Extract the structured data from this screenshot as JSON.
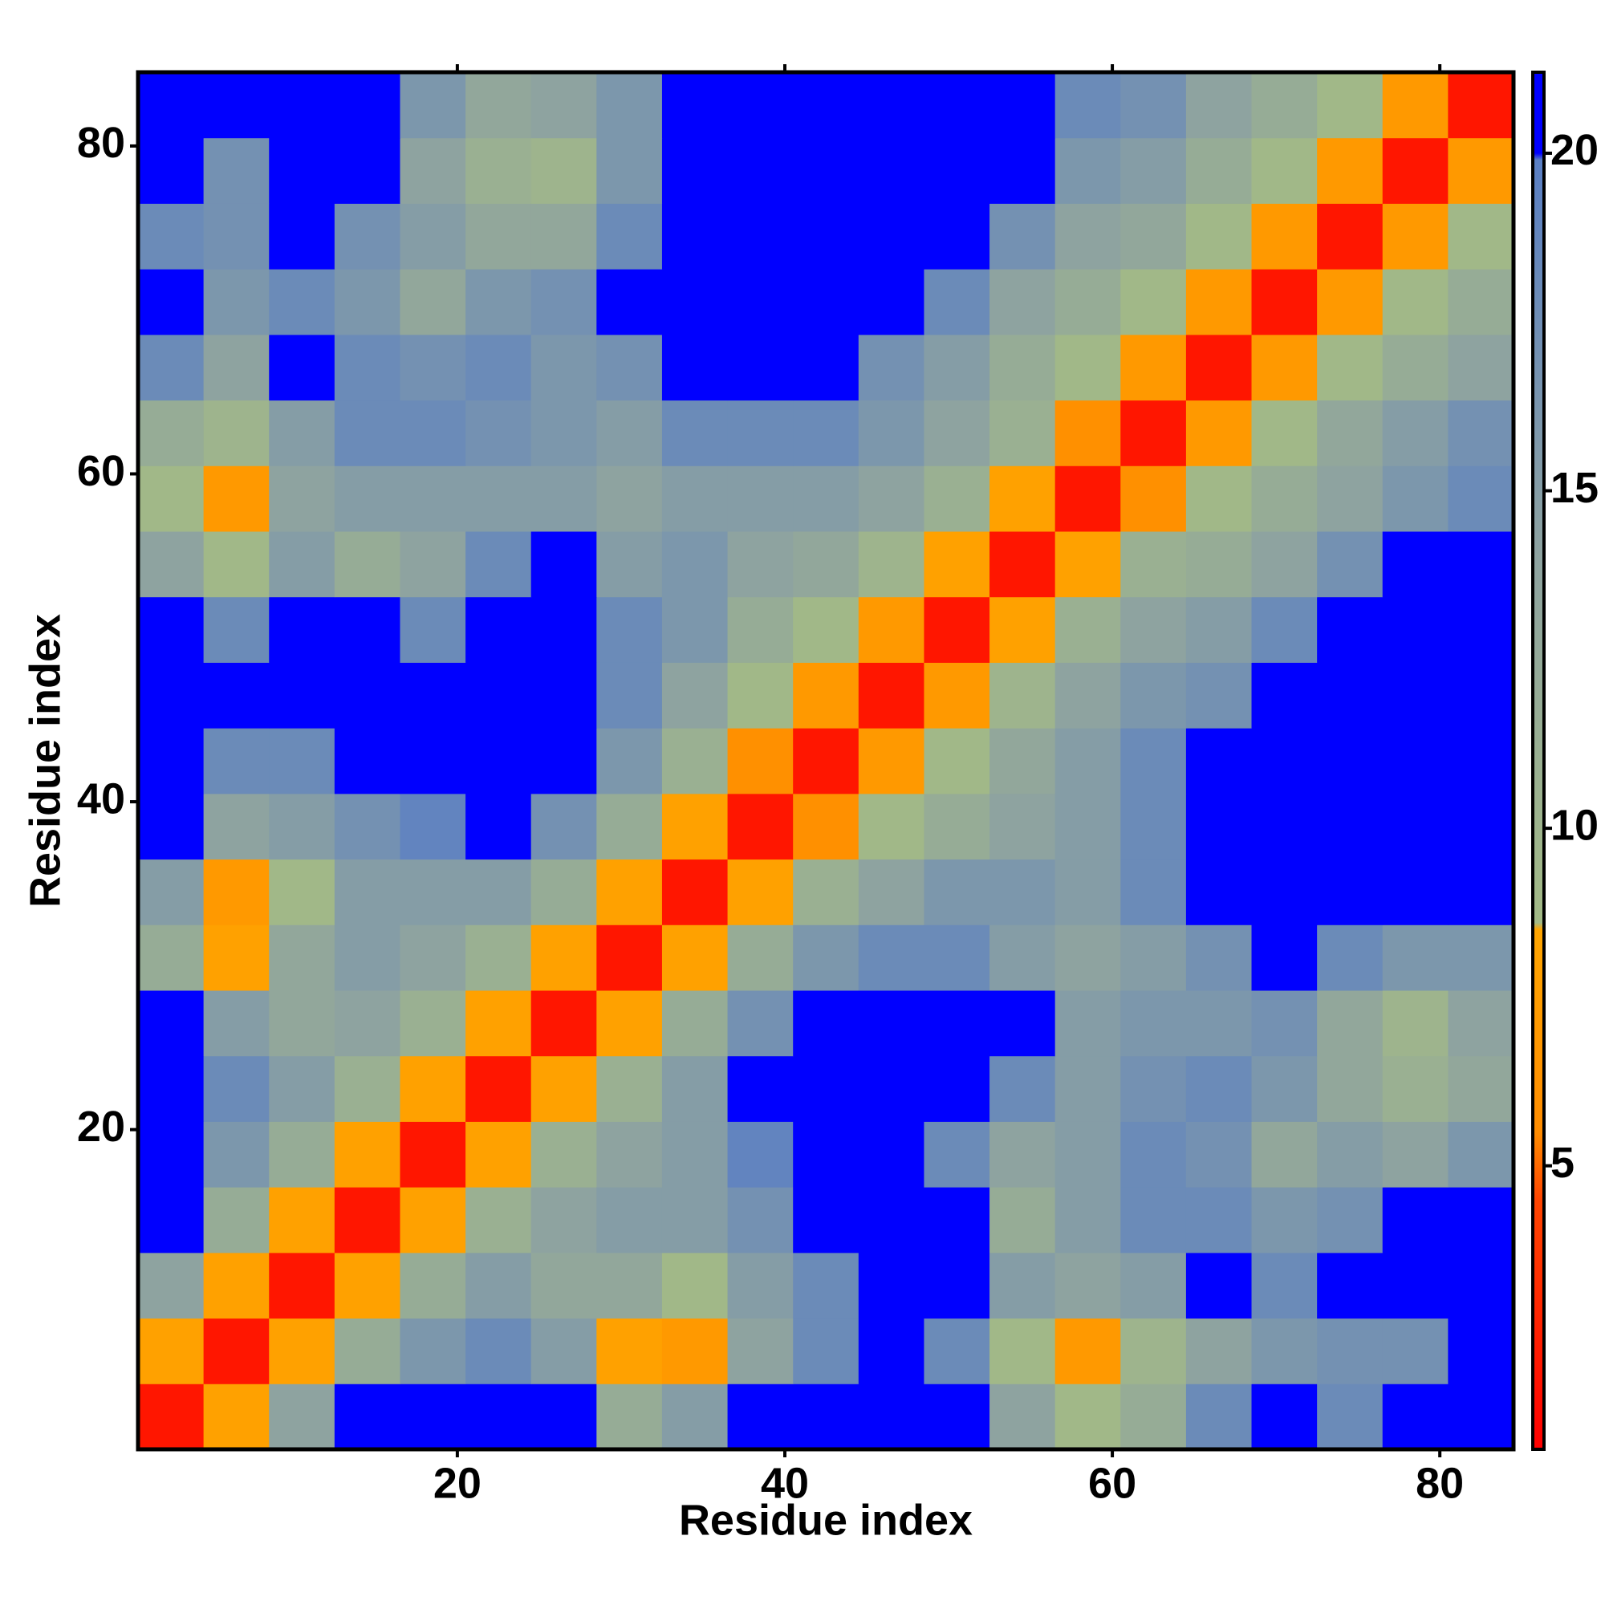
{
  "chart_data": {
    "type": "heatmap",
    "x_label": "Residue index",
    "y_label": "Residue index",
    "x": [
      2.5,
      6.5,
      10.5,
      14.5,
      18.5,
      22.5,
      26.5,
      30.5,
      34.5,
      38.5,
      42.5,
      46.5,
      50.5,
      54.5,
      58.5,
      62.5,
      66.5,
      70.5,
      74.5,
      78.5,
      82.5
    ],
    "y": [
      2.5,
      6.5,
      10.5,
      14.5,
      18.5,
      22.5,
      26.5,
      30.5,
      34.5,
      38.5,
      42.5,
      46.5,
      50.5,
      54.5,
      58.5,
      62.5,
      66.5,
      70.5,
      74.5,
      78.5,
      82.5
    ],
    "xlim": [
      0.5,
      84.5
    ],
    "ylim": [
      0.5,
      84.5
    ],
    "xticks": [
      20,
      40,
      60,
      80
    ],
    "yticks": [
      20,
      40,
      60,
      80
    ],
    "zlim": [
      0.8,
      21.2
    ],
    "zticks": [
      5,
      10,
      15,
      20
    ],
    "colorscale": [
      [
        0.8,
        "#ff0000"
      ],
      [
        4.5,
        "#ff4500"
      ],
      [
        5.5,
        "#ff8c00"
      ],
      [
        8.5,
        "#ffa500"
      ],
      [
        8.6,
        "#a3ba86"
      ],
      [
        14,
        "#8ea3a0"
      ],
      [
        19.9,
        "#5a7fc4"
      ],
      [
        20,
        "#0000ff"
      ]
    ],
    "z": [
      [
        2,
        8,
        14,
        20,
        22,
        22,
        20,
        12,
        15,
        20,
        22,
        22,
        20,
        14,
        9,
        12,
        18,
        22,
        18,
        20,
        22
      ],
      [
        8,
        2,
        8,
        12,
        16,
        18,
        15,
        8,
        7,
        14,
        18,
        20,
        18,
        9,
        7,
        10,
        14,
        16,
        17,
        17,
        20
      ],
      [
        14,
        8,
        2,
        8,
        12,
        15,
        13,
        13,
        9,
        15,
        18,
        22,
        20,
        15,
        14,
        15,
        20,
        18,
        20,
        22,
        22
      ],
      [
        20,
        12,
        8,
        2,
        8,
        11,
        14,
        15,
        15,
        17,
        22,
        22,
        20,
        12,
        15,
        18,
        18,
        16,
        17,
        21,
        22
      ],
      [
        22,
        16,
        12,
        8,
        2,
        8,
        11,
        14,
        15,
        19,
        22,
        20,
        18,
        14,
        15,
        18,
        17,
        13,
        15,
        14,
        16
      ],
      [
        22,
        18,
        15,
        11,
        8,
        2,
        8,
        11,
        15,
        20,
        22,
        22,
        22,
        18,
        15,
        17,
        18,
        16,
        13,
        11,
        13
      ],
      [
        20,
        15,
        13,
        14,
        11,
        8,
        2,
        8,
        12,
        17,
        22,
        22,
        22,
        20,
        15,
        16,
        16,
        17,
        13,
        10,
        14
      ],
      [
        12,
        8,
        13,
        15,
        14,
        11,
        8,
        2,
        8,
        12,
        16,
        18,
        18,
        15,
        14,
        15,
        17,
        20,
        18,
        16,
        16
      ],
      [
        15,
        7,
        9,
        15,
        15,
        15,
        12,
        8,
        2,
        8,
        11,
        14,
        16,
        16,
        15,
        18,
        20,
        20,
        20,
        20,
        20
      ],
      [
        20,
        14,
        15,
        17,
        19,
        20,
        17,
        12,
        8,
        2,
        6,
        9,
        12,
        14,
        15,
        18,
        20,
        22,
        22,
        22,
        22
      ],
      [
        22,
        18,
        18,
        22,
        22,
        22,
        22,
        16,
        11,
        6,
        2,
        7,
        9,
        13,
        15,
        18,
        20,
        20,
        22,
        22,
        22
      ],
      [
        22,
        20,
        22,
        22,
        20,
        22,
        22,
        18,
        14,
        9,
        7,
        2,
        7,
        10,
        14,
        16,
        17,
        20,
        22,
        22,
        22
      ],
      [
        20,
        18,
        20,
        20,
        18,
        22,
        22,
        18,
        16,
        12,
        9,
        7,
        2,
        8,
        11,
        14,
        15,
        18,
        20,
        22,
        22
      ],
      [
        14,
        9,
        15,
        12,
        14,
        18,
        20,
        15,
        16,
        14,
        13,
        10,
        8,
        2,
        8,
        11,
        12,
        14,
        17,
        20,
        22
      ],
      [
        9,
        7,
        14,
        15,
        15,
        15,
        15,
        14,
        15,
        15,
        15,
        14,
        11,
        8,
        2,
        6,
        9,
        12,
        14,
        16,
        18
      ],
      [
        12,
        10,
        15,
        18,
        18,
        17,
        16,
        15,
        18,
        18,
        18,
        16,
        14,
        11,
        6,
        2,
        7,
        9,
        13,
        15,
        17
      ],
      [
        18,
        14,
        20,
        18,
        17,
        18,
        16,
        17,
        20,
        20,
        20,
        17,
        15,
        12,
        9,
        7,
        2,
        7,
        9,
        12,
        14
      ],
      [
        22,
        16,
        18,
        16,
        13,
        16,
        17,
        20,
        20,
        22,
        20,
        20,
        18,
        14,
        12,
        9,
        7,
        2,
        7,
        9,
        12
      ],
      [
        18,
        17,
        20,
        17,
        15,
        13,
        13,
        18,
        20,
        22,
        22,
        22,
        20,
        17,
        14,
        13,
        9,
        7,
        2,
        7,
        9
      ],
      [
        20,
        17,
        22,
        21,
        14,
        11,
        10,
        16,
        20,
        22,
        22,
        22,
        22,
        20,
        16,
        15,
        12,
        9,
        7,
        2,
        7
      ],
      [
        22,
        20,
        22,
        22,
        16,
        13,
        14,
        16,
        20,
        22,
        22,
        22,
        22,
        22,
        18,
        17,
        14,
        12,
        9,
        7,
        2
      ]
    ]
  }
}
